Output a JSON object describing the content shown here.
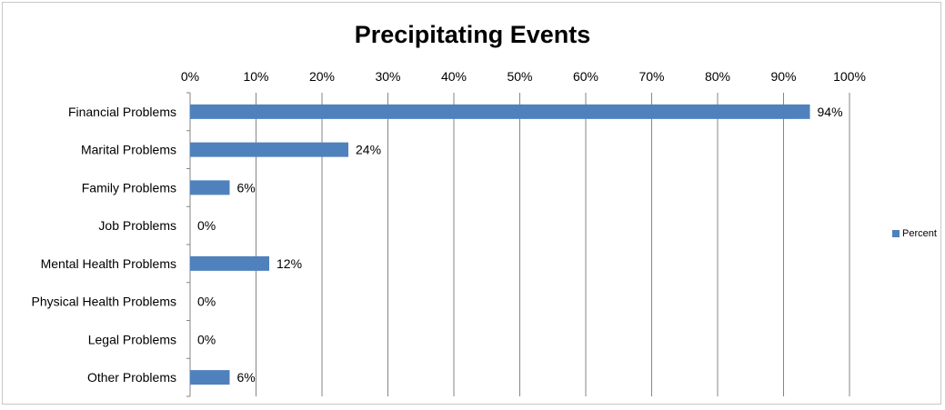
{
  "chart_data": {
    "type": "bar",
    "orientation": "horizontal",
    "title": "Precipitating Events",
    "categories": [
      "Financial Problems",
      "Marital Problems",
      "Family Problems",
      "Job Problems",
      "Mental Health Problems",
      "Physical Health Problems",
      "Legal Problems",
      "Other Problems"
    ],
    "series": [
      {
        "name": "Percent",
        "values": [
          94,
          24,
          6,
          0,
          12,
          0,
          0,
          6
        ],
        "color": "#4f81bd"
      }
    ],
    "data_labels": [
      "94%",
      "24%",
      "6%",
      "0%",
      "12%",
      "0%",
      "0%",
      "6%"
    ],
    "xlim": [
      0,
      100
    ],
    "x_ticks": [
      "0%",
      "10%",
      "20%",
      "30%",
      "40%",
      "50%",
      "60%",
      "70%",
      "80%",
      "90%",
      "100%"
    ],
    "x_axis_position": "top",
    "grid": "vertical",
    "legend_position": "right"
  }
}
